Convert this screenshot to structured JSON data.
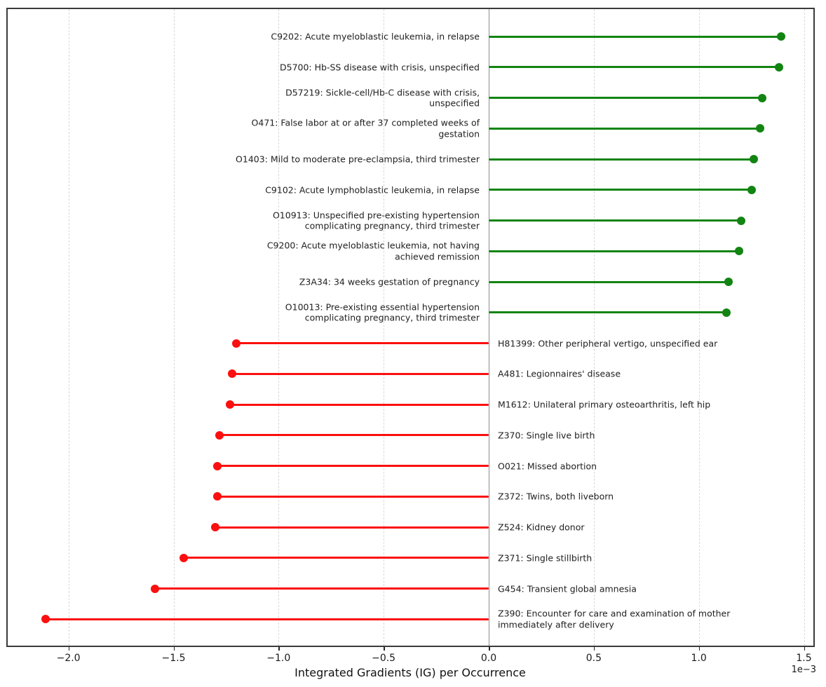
{
  "chart_data": {
    "type": "bar",
    "subtype": "lollipop-horizontal",
    "title": "",
    "xlabel": "Integrated Gradients (IG) per Occurrence",
    "x_offset_label": "1e−3",
    "value_scale": "1e-3",
    "x_ticks_1e3": [
      -2.0,
      -1.5,
      -1.0,
      -0.5,
      0.0,
      0.5,
      1.0,
      1.5
    ],
    "x_tick_labels": [
      "−2.0",
      "−1.5",
      "−1.0",
      "−0.5",
      "0.0",
      "0.5",
      "1.0",
      "1.5"
    ],
    "xlim_1e3": [
      -2.29,
      1.56
    ],
    "grid": "vertical-dashed",
    "zero_line": true,
    "positive_color": "#128412",
    "negative_color": "#fb0f0f",
    "items": [
      {
        "code": "C9202",
        "description": "Acute myeloblastic leukemia, in relapse",
        "value_1e3": 1.39
      },
      {
        "code": "D5700",
        "description": "Hb-SS disease with crisis, unspecified",
        "value_1e3": 1.38
      },
      {
        "code": "D57219",
        "description": "Sickle-cell/Hb-C disease with crisis, unspecified",
        "value_1e3": 1.3
      },
      {
        "code": "O471",
        "description": "False labor at or after 37 completed weeks of gestation",
        "value_1e3": 1.29
      },
      {
        "code": "O1403",
        "description": "Mild to moderate pre-eclampsia, third trimester",
        "value_1e3": 1.26
      },
      {
        "code": "C9102",
        "description": "Acute lymphoblastic leukemia, in relapse",
        "value_1e3": 1.25
      },
      {
        "code": "O10913",
        "description": "Unspecified pre-existing hypertension complicating pregnancy, third trimester",
        "value_1e3": 1.2
      },
      {
        "code": "C9200",
        "description": "Acute myeloblastic leukemia, not having achieved remission",
        "value_1e3": 1.19
      },
      {
        "code": "Z3A34",
        "description": "34 weeks gestation of pregnancy",
        "value_1e3": 1.14
      },
      {
        "code": "O10013",
        "description": "Pre-existing essential hypertension complicating pregnancy, third trimester",
        "value_1e3": 1.13
      },
      {
        "code": "H81399",
        "description": "Other peripheral vertigo, unspecified ear",
        "value_1e3": -1.2
      },
      {
        "code": "A481",
        "description": "Legionnaires' disease",
        "value_1e3": -1.22
      },
      {
        "code": "M1612",
        "description": "Unilateral primary osteoarthritis, left hip",
        "value_1e3": -1.23
      },
      {
        "code": "Z370",
        "description": "Single live birth",
        "value_1e3": -1.28
      },
      {
        "code": "O021",
        "description": "Missed abortion",
        "value_1e3": -1.29
      },
      {
        "code": "Z372",
        "description": "Twins, both liveborn",
        "value_1e3": -1.29
      },
      {
        "code": "Z524",
        "description": "Kidney donor",
        "value_1e3": -1.3
      },
      {
        "code": "Z371",
        "description": "Single stillbirth",
        "value_1e3": -1.45
      },
      {
        "code": "G454",
        "description": "Transient global amnesia",
        "value_1e3": -1.59
      },
      {
        "code": "Z390",
        "description": "Encounter for care and examination of mother immediately after delivery",
        "value_1e3": -2.11
      }
    ]
  }
}
